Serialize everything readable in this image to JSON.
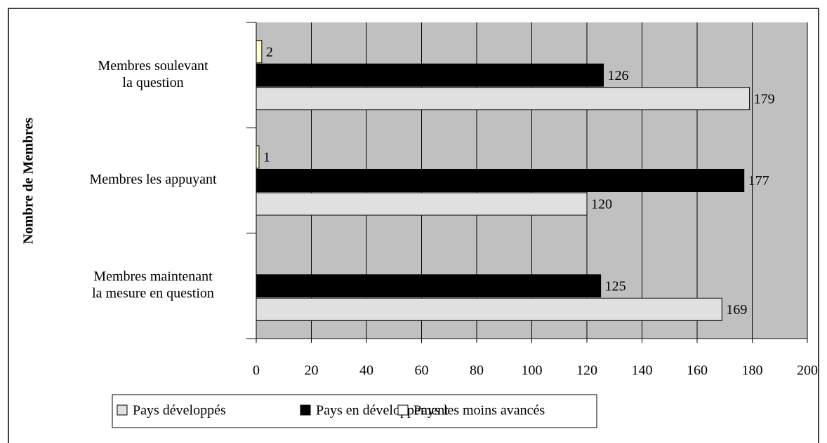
{
  "chart_data": {
    "type": "barh",
    "y_label": "Nombre de Membres",
    "categories": [
      [
        "Membres soulevant",
        "la question"
      ],
      [
        "Membres les appuyant"
      ],
      [
        "Membres maintenant",
        "la mesure en question"
      ]
    ],
    "series": [
      {
        "name": "Pays développés",
        "color": "#e0e0e0",
        "values": [
          179,
          120,
          169
        ]
      },
      {
        "name": "Pays en développement",
        "color": "#000000",
        "values": [
          126,
          177,
          125
        ]
      },
      {
        "name": "Pays les moins avancés",
        "color": "#ffffcc",
        "values": [
          2,
          1,
          null
        ]
      }
    ],
    "xlim": [
      0,
      200
    ],
    "xticks": [
      0,
      20,
      40,
      60,
      80,
      100,
      120,
      140,
      160,
      180,
      200
    ],
    "grid": true,
    "legend": "bottom"
  }
}
